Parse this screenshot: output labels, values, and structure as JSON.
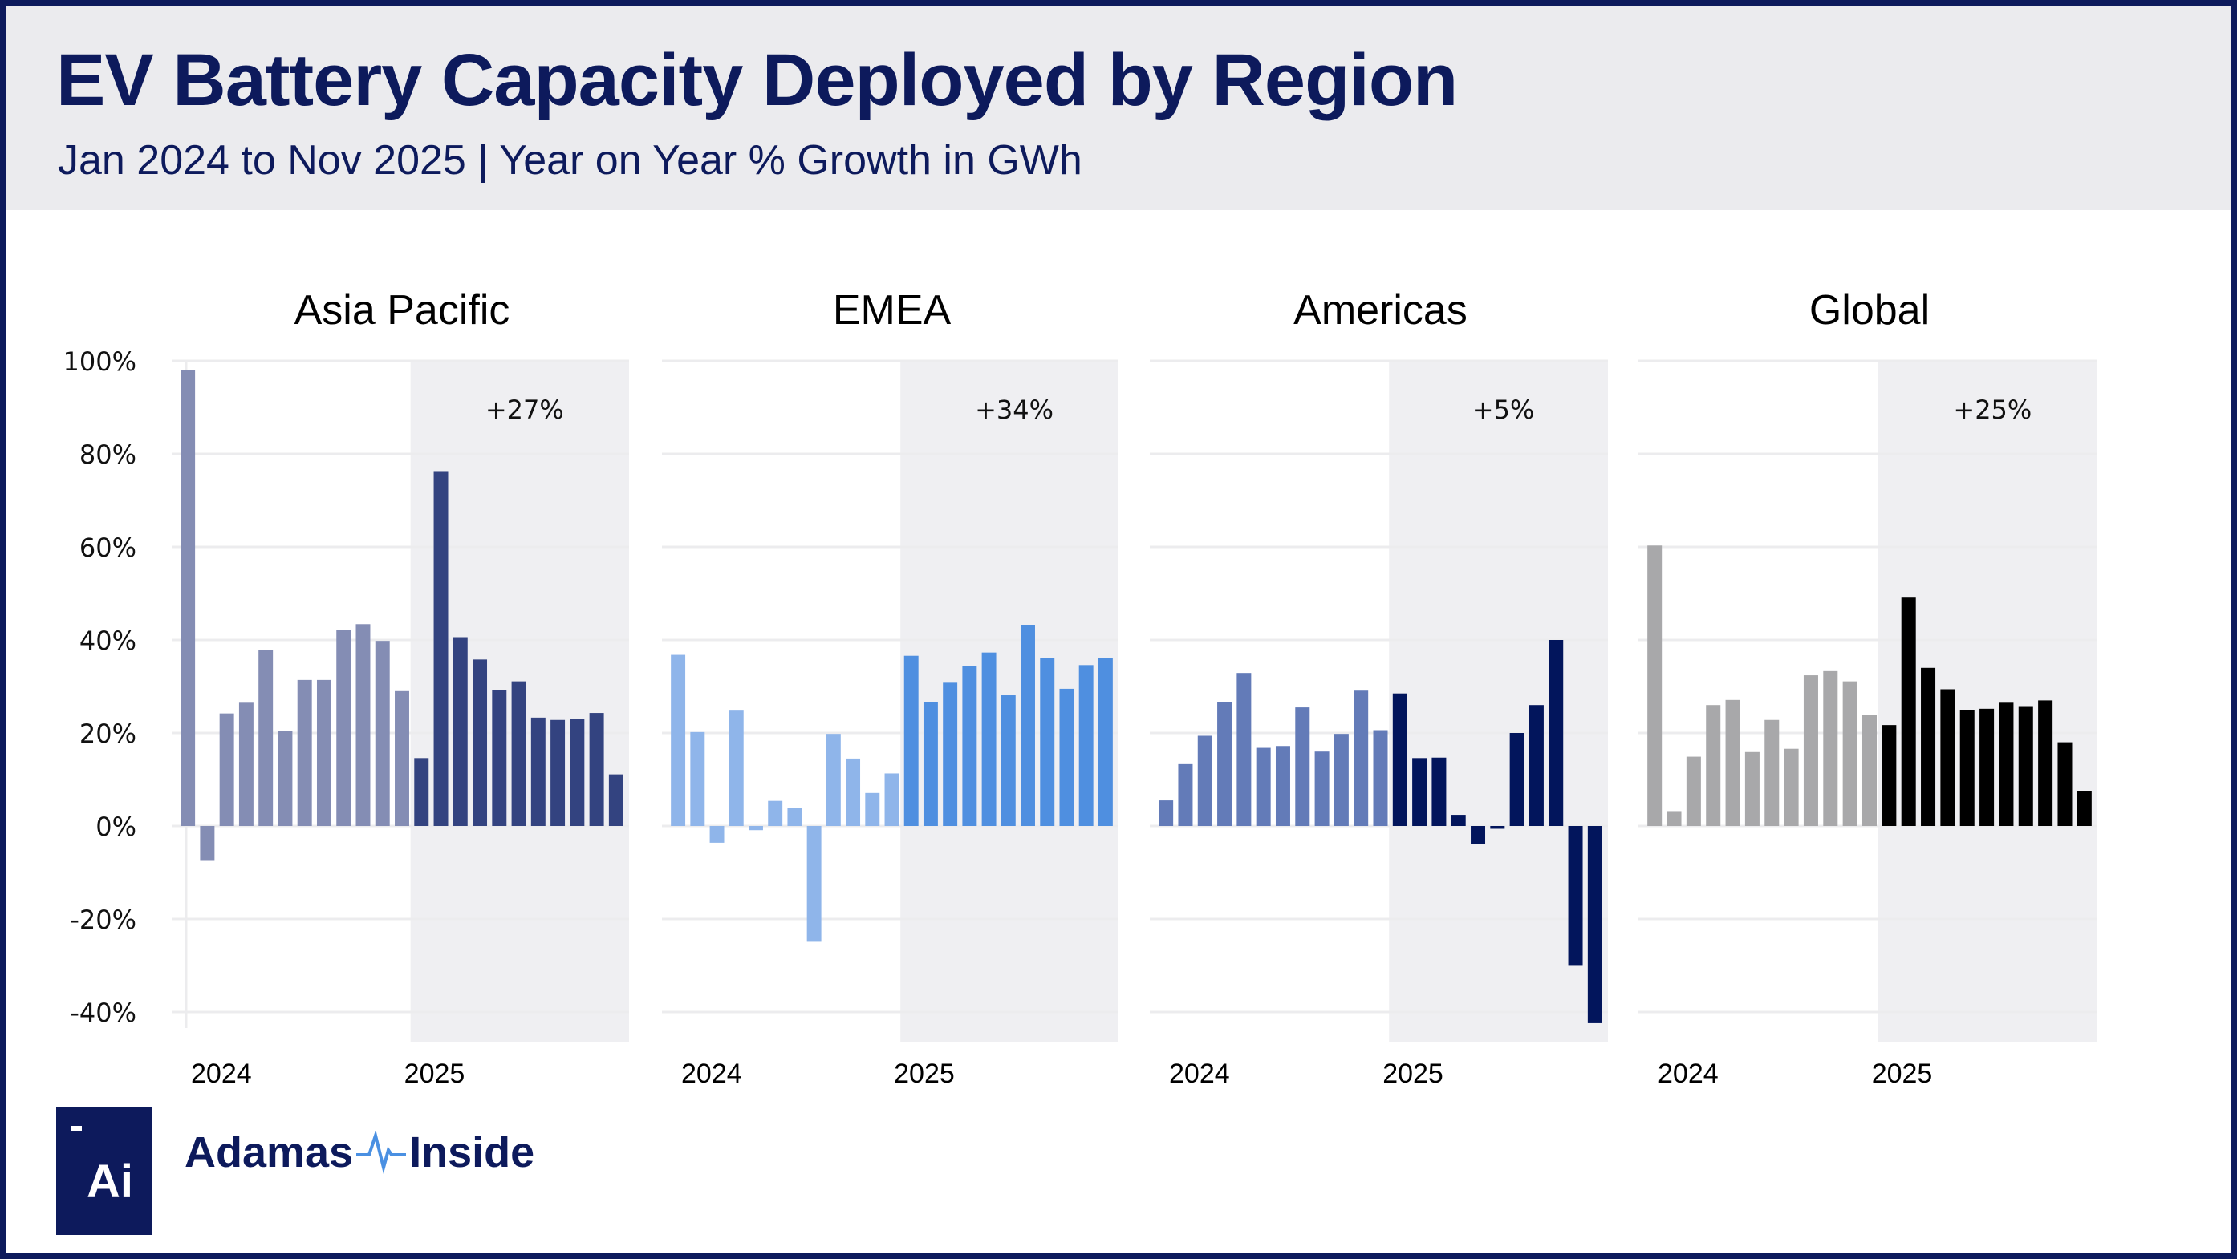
{
  "header": {
    "title": "EV Battery Capacity Deployed by Region",
    "subtitle": "Jan 2024 to Nov 2025 |  Year on Year % Growth in GWh"
  },
  "brand": {
    "logo_mark": "Ai",
    "name_left": "Adamas",
    "name_right": "Inside",
    "separator_icon": "pulse-wave-icon"
  },
  "colors": {
    "navy": "#0d1a5c",
    "header_bg": "#ebebee",
    "shade_2025": "#efeff2",
    "gridline": "#ececee",
    "pulse": "#4a90e2"
  },
  "chart_data": [
    {
      "type": "bar",
      "title": "Asia Pacific",
      "annotation": "+27%",
      "x_tick_labels": [
        "2024",
        "2025"
      ],
      "ylim": [
        -40,
        100
      ],
      "yticks": [
        "100%",
        "80%",
        "60%",
        "40%",
        "20%",
        "0%",
        "-20%",
        "-40%"
      ],
      "ylabel": "",
      "xlabel": "",
      "grid": true,
      "shaded_period": "2025",
      "colors": {
        "2024": "#848db4",
        "2025": "#334380"
      },
      "categories": [
        "Jan 2024",
        "Feb 2024",
        "Mar 2024",
        "Apr 2024",
        "May 2024",
        "Jun 2024",
        "Jul 2024",
        "Aug 2024",
        "Sep 2024",
        "Oct 2024",
        "Nov 2024",
        "Dec 2024",
        "Jan 2025",
        "Feb 2025",
        "Mar 2025",
        "Apr 2025",
        "May 2025",
        "Jun 2025",
        "Jul 2025",
        "Aug 2025",
        "Sep 2025",
        "Oct 2025",
        "Nov 2025"
      ],
      "values": [
        98,
        -7.5,
        24.2,
        26.5,
        37.8,
        20.4,
        31.4,
        31.4,
        42.1,
        43.4,
        39.8,
        29.0,
        14.6,
        76.3,
        40.6,
        35.8,
        29.3,
        31.1,
        23.3,
        22.8,
        23.1,
        24.3,
        11.1
      ]
    },
    {
      "type": "bar",
      "title": "EMEA",
      "annotation": "+34%",
      "x_tick_labels": [
        "2024",
        "2025"
      ],
      "ylim": [
        -40,
        100
      ],
      "grid": true,
      "shaded_period": "2025",
      "colors": {
        "2024": "#8fb5ea",
        "2025": "#4f8fe0"
      },
      "categories": [
        "Jan 2024",
        "Feb 2024",
        "Mar 2024",
        "Apr 2024",
        "May 2024",
        "Jun 2024",
        "Jul 2024",
        "Aug 2024",
        "Sep 2024",
        "Oct 2024",
        "Nov 2024",
        "Dec 2024",
        "Jan 2025",
        "Feb 2025",
        "Mar 2025",
        "Apr 2025",
        "May 2025",
        "Jun 2025",
        "Jul 2025",
        "Aug 2025",
        "Sep 2025",
        "Oct 2025",
        "Nov 2025"
      ],
      "values": [
        36.8,
        20.2,
        -3.6,
        24.8,
        -0.9,
        5.4,
        3.8,
        -24.9,
        19.8,
        14.5,
        7.1,
        11.3,
        36.6,
        26.6,
        30.8,
        34.4,
        37.3,
        28.1,
        43.2,
        36.1,
        29.5,
        34.6,
        36.1
      ]
    },
    {
      "type": "bar",
      "title": "Americas",
      "annotation": "+5%",
      "x_tick_labels": [
        "2024",
        "2025"
      ],
      "ylim": [
        -40,
        100
      ],
      "grid": true,
      "shaded_period": "2025",
      "colors": {
        "2024": "#637bb8",
        "2025": "#02155c"
      },
      "categories": [
        "Jan 2024",
        "Feb 2024",
        "Mar 2024",
        "Apr 2024",
        "May 2024",
        "Jun 2024",
        "Jul 2024",
        "Aug 2024",
        "Sep 2024",
        "Oct 2024",
        "Nov 2024",
        "Dec 2024",
        "Jan 2025",
        "Feb 2025",
        "Mar 2025",
        "Apr 2025",
        "May 2025",
        "Jun 2025",
        "Jul 2025",
        "Aug 2025",
        "Sep 2025",
        "Oct 2025",
        "Nov 2025"
      ],
      "values": [
        5.5,
        13.3,
        19.4,
        26.6,
        32.9,
        16.8,
        17.2,
        25.5,
        16.0,
        19.8,
        29.1,
        20.6,
        28.5,
        14.6,
        14.7,
        2.4,
        -3.8,
        -0.6,
        20.0,
        26.0,
        40.0,
        -29.9,
        -42.4
      ]
    },
    {
      "type": "bar",
      "title": "Global",
      "annotation": "+25%",
      "x_tick_labels": [
        "2024",
        "2025"
      ],
      "ylim": [
        -40,
        100
      ],
      "grid": true,
      "shaded_period": "2025",
      "colors": {
        "2024": "#a8a8aa",
        "2025": "#000000"
      },
      "categories": [
        "Jan 2024",
        "Feb 2024",
        "Mar 2024",
        "Apr 2024",
        "May 2024",
        "Jun 2024",
        "Jul 2024",
        "Aug 2024",
        "Sep 2024",
        "Oct 2024",
        "Nov 2024",
        "Dec 2024",
        "Jan 2025",
        "Feb 2025",
        "Mar 2025",
        "Apr 2025",
        "May 2025",
        "Jun 2025",
        "Jul 2025",
        "Aug 2025",
        "Sep 2025",
        "Oct 2025",
        "Nov 2025"
      ],
      "values": [
        60.3,
        3.2,
        14.9,
        26.0,
        27.1,
        15.9,
        22.8,
        16.6,
        32.4,
        33.3,
        31.1,
        23.8,
        21.7,
        49.1,
        34.0,
        29.4,
        25.0,
        25.2,
        26.5,
        25.6,
        27.0,
        18.0,
        7.5
      ]
    }
  ]
}
